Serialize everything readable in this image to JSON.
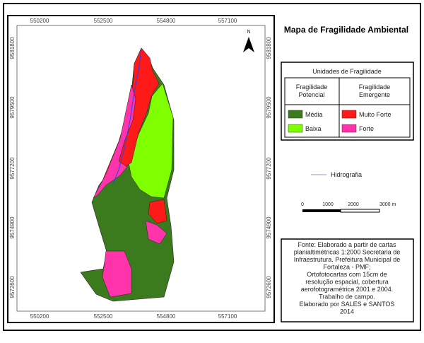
{
  "title": "Mapa de Fragilidade Ambiental",
  "grid": {
    "x_labels": [
      "550200",
      "552500",
      "554800",
      "557100"
    ],
    "y_labels": [
      "9581800",
      "9579500",
      "9577200",
      "9574900",
      "9572600"
    ]
  },
  "north": "N",
  "legend": {
    "title": "Unidades de Fragilidade",
    "groups": [
      {
        "title_lines": [
          "Fragilidade",
          "Potencial"
        ],
        "items": [
          {
            "label": "Média",
            "color": "#3b7a1d"
          },
          {
            "label": "Baixa",
            "color": "#7fff00"
          }
        ]
      },
      {
        "title_lines": [
          "Fragilidade",
          "Emergente"
        ],
        "items": [
          {
            "label": "Muito Forte",
            "color": "#ff1a1a"
          },
          {
            "label": "Forte",
            "color": "#ff33aa"
          }
        ]
      }
    ]
  },
  "hydro": "Hidrografia",
  "scale": [
    "0",
    "1000",
    "2000",
    "3000 m"
  ],
  "source": [
    "Fonte: Elaborado a partir de cartas",
    "planialtimétricas 1:2000 Secretaria de",
    "Infraestrutura. Prefeitura Municipal de",
    "Fortaleza - PMF;",
    "Ortofotocartas com 15cm de",
    "resolução espacial, cobertura",
    "aerofotogramétrica 2001 e 2004.",
    "Trabalho de campo.",
    "Elaborado por SALES e SANTOS",
    "2014"
  ]
}
